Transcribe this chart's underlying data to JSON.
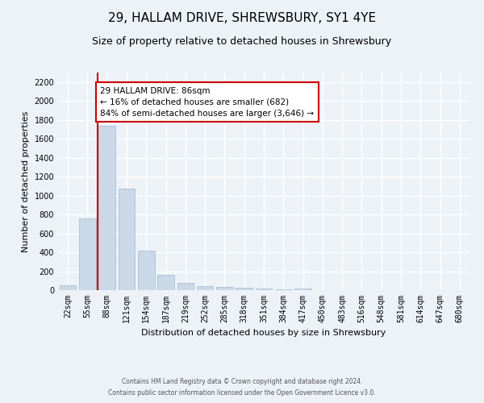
{
  "title": "29, HALLAM DRIVE, SHREWSBURY, SY1 4YE",
  "subtitle": "Size of property relative to detached houses in Shrewsbury",
  "xlabel": "Distribution of detached houses by size in Shrewsbury",
  "ylabel": "Number of detached properties",
  "footnote1": "Contains HM Land Registry data © Crown copyright and database right 2024.",
  "footnote2": "Contains public sector information licensed under the Open Government Licence v3.0.",
  "bar_labels": [
    "22sqm",
    "55sqm",
    "88sqm",
    "121sqm",
    "154sqm",
    "187sqm",
    "219sqm",
    "252sqm",
    "285sqm",
    "318sqm",
    "351sqm",
    "384sqm",
    "417sqm",
    "450sqm",
    "483sqm",
    "516sqm",
    "548sqm",
    "581sqm",
    "614sqm",
    "647sqm",
    "680sqm"
  ],
  "bar_values": [
    55,
    760,
    1740,
    1070,
    420,
    158,
    80,
    42,
    38,
    25,
    15,
    10,
    13,
    0,
    0,
    0,
    0,
    0,
    0,
    0,
    0
  ],
  "bar_color": "#c9d9e8",
  "bar_edge_color": "#a0b8d0",
  "ylim": [
    0,
    2300
  ],
  "yticks": [
    0,
    200,
    400,
    600,
    800,
    1000,
    1200,
    1400,
    1600,
    1800,
    2000,
    2200
  ],
  "property_bin_index": 2,
  "vline_color": "#cc0000",
  "annotation_box_color": "#cc0000",
  "annotation_title": "29 HALLAM DRIVE: 86sqm",
  "annotation_line1": "← 16% of detached houses are smaller (682)",
  "annotation_line2": "84% of semi-detached houses are larger (3,646) →",
  "bg_color": "#edf2f7",
  "plot_bg_color": "#edf2f7",
  "grid_color": "#ffffff",
  "title_fontsize": 11,
  "subtitle_fontsize": 9,
  "annotation_fontsize": 7.5,
  "tick_fontsize": 7,
  "ylabel_fontsize": 8,
  "xlabel_fontsize": 8,
  "footnote_fontsize": 5.5
}
